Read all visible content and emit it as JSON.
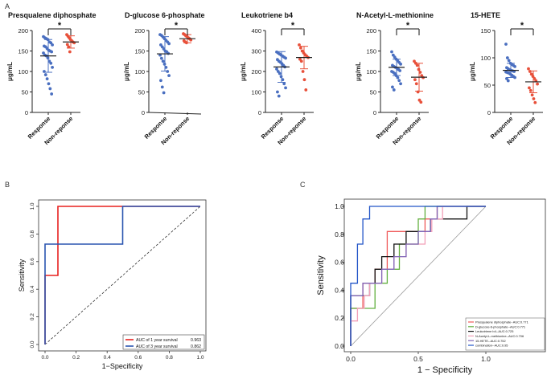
{
  "figure": {
    "panel_labels": [
      "A",
      "B",
      "C"
    ],
    "ylabel": "μg/mL",
    "group_labels": [
      "Response",
      "Non-reponse"
    ]
  },
  "colors": {
    "response": "#4a6fc0",
    "nonresponse": "#e8503a",
    "axis": "#222222",
    "roc1": "#e8201f",
    "roc3": "#2a55b0",
    "diag": "#333333",
    "c_pres": "#ef5a5a",
    "c_glu": "#63b040",
    "c_leuk": "#111111",
    "c_nacetyl": "#f2a0b8",
    "c_hete": "#8066b8",
    "c_combo": "#2255c8",
    "c_ref": "#999999"
  },
  "chart_data": [
    {
      "type": "scatter",
      "title": "Presqualene diphosphate",
      "ylabel": "μg/mL",
      "yticks": [
        0,
        50,
        100,
        150,
        200
      ],
      "ylim": [
        0,
        200
      ],
      "sig": "*",
      "groups": [
        {
          "name": "Response",
          "mean": 138,
          "sd": 40,
          "values": [
            185,
            182,
            180,
            178,
            172,
            170,
            165,
            162,
            160,
            156,
            152,
            150,
            148,
            145,
            140,
            138,
            133,
            125,
            120,
            110,
            100,
            92,
            82,
            70,
            58,
            45
          ]
        },
        {
          "name": "Non-reponse",
          "mean": 172,
          "sd": 15,
          "values": [
            190,
            186,
            182,
            178,
            175,
            172,
            170,
            166,
            160,
            148
          ]
        }
      ]
    },
    {
      "type": "scatter",
      "title": "D-glucose 6-phosphate",
      "ylabel": "μg/mL",
      "yticks": [
        0,
        50,
        100,
        150,
        200
      ],
      "ylim": [
        0,
        200
      ],
      "sig": "*",
      "groups": [
        {
          "name": "Response",
          "mean": 143,
          "sd": 42,
          "values": [
            190,
            188,
            184,
            180,
            176,
            172,
            168,
            165,
            160,
            155,
            150,
            148,
            144,
            140,
            132,
            125,
            118,
            110,
            100,
            90,
            78,
            62,
            48
          ]
        },
        {
          "name": "Non-reponse",
          "mean": 180,
          "sd": 10,
          "values": [
            192,
            190,
            187,
            185,
            182,
            180,
            177,
            175,
            172,
            170
          ]
        }
      ]
    },
    {
      "type": "scatter",
      "title": "Leukotriene b4",
      "ylabel": "μg/mL",
      "yticks": [
        0,
        100,
        200,
        300,
        400
      ],
      "ylim": [
        0,
        400
      ],
      "sig": "*",
      "groups": [
        {
          "name": "Response",
          "mean": 222,
          "sd": 75,
          "values": [
            295,
            290,
            285,
            280,
            275,
            270,
            265,
            258,
            250,
            245,
            238,
            230,
            222,
            212,
            200,
            190,
            175,
            160,
            140,
            120,
            100,
            80
          ]
        },
        {
          "name": "Non-reponse",
          "mean": 268,
          "sd": 55,
          "values": [
            330,
            315,
            300,
            290,
            282,
            275,
            268,
            260,
            250,
            200,
            160,
            110
          ]
        }
      ]
    },
    {
      "type": "scatter",
      "title": "N-Acetyl-L-methionine",
      "ylabel": "μg/mL",
      "yticks": [
        0,
        50,
        100,
        150,
        200
      ],
      "ylim": [
        0,
        200
      ],
      "sig": "*",
      "groups": [
        {
          "name": "Response",
          "mean": 110,
          "sd": 20,
          "values": [
            148,
            140,
            135,
            130,
            126,
            122,
            118,
            115,
            112,
            110,
            108,
            105,
            102,
            100,
            98,
            95,
            90,
            85,
            78,
            70,
            62,
            55
          ]
        },
        {
          "name": "Non-reponse",
          "mean": 86,
          "sd": 34,
          "values": [
            125,
            120,
            115,
            105,
            98,
            90,
            85,
            80,
            70,
            50,
            30,
            25
          ]
        }
      ]
    },
    {
      "type": "scatter",
      "title": "15-HETE",
      "ylabel": "μg/mL",
      "yticks": [
        0,
        50,
        100,
        150
      ],
      "ylim": [
        0,
        150
      ],
      "sig": "*",
      "groups": [
        {
          "name": "Response",
          "mean": 77,
          "sd": 13,
          "values": [
            125,
            100,
            95,
            90,
            88,
            86,
            84,
            82,
            80,
            78,
            77,
            76,
            75,
            74,
            73,
            72,
            70,
            68,
            66,
            64,
            62,
            58
          ]
        },
        {
          "name": "Non-reponse",
          "mean": 56,
          "sd": 20,
          "values": [
            80,
            75,
            70,
            66,
            62,
            58,
            52,
            45,
            40,
            32,
            25,
            18
          ]
        }
      ]
    },
    {
      "type": "line",
      "title": "",
      "xlabel": "1−Specificity",
      "ylabel": "Sensitivity",
      "xlim": [
        0,
        1
      ],
      "ylim": [
        0,
        1
      ],
      "xticks": [
        "0.0",
        "0.2",
        "0.4",
        "0.6",
        "0.8",
        "1.0"
      ],
      "yticks": [
        "0.0",
        "0.2",
        "0.4",
        "0.6",
        "0.8",
        "1.0"
      ],
      "series": [
        {
          "name": "AUC of 1 year survival",
          "auc": "0.963",
          "color_key": "roc1",
          "points": [
            [
              0,
              0
            ],
            [
              0,
              0.5
            ],
            [
              0.083,
              0.5
            ],
            [
              0.083,
              1.0
            ],
            [
              1.0,
              1.0
            ]
          ]
        },
        {
          "name": "AUC of 3 year survival",
          "auc": "0.862",
          "color_key": "roc3",
          "points": [
            [
              0,
              0
            ],
            [
              0,
              0.727
            ],
            [
              0.5,
              0.727
            ],
            [
              0.5,
              1.0
            ],
            [
              1.0,
              1.0
            ]
          ]
        }
      ],
      "legend": "bottom-right"
    },
    {
      "type": "line",
      "title": "",
      "xlabel": "1 − Specificity",
      "ylabel": "Sensitivity",
      "xlim": [
        0,
        1
      ],
      "ylim": [
        0,
        1
      ],
      "xticks": [
        "0.0",
        "0.5",
        "1.0"
      ],
      "yticks": [
        "0.0",
        "0.2",
        "0.4",
        "0.6",
        "0.8",
        "1.0"
      ],
      "series": [
        {
          "name": "Presqualene diphosphate--AUC:0.771",
          "color_key": "c_pres",
          "points": [
            [
              0,
              0
            ],
            [
              0,
              0.27
            ],
            [
              0.09,
              0.27
            ],
            [
              0.09,
              0.45
            ],
            [
              0.18,
              0.45
            ],
            [
              0.18,
              0.55
            ],
            [
              0.27,
              0.55
            ],
            [
              0.27,
              0.64
            ],
            [
              0.27,
              0.82
            ],
            [
              0.36,
              0.82
            ],
            [
              0.45,
              0.82
            ],
            [
              0.55,
              0.82
            ],
            [
              0.55,
              0.91
            ],
            [
              0.64,
              0.91
            ],
            [
              0.64,
              1.0
            ],
            [
              1.0,
              1.0
            ]
          ]
        },
        {
          "name": "D-glucose-6-phosphate--AUC:0.771",
          "color_key": "c_glu",
          "points": [
            [
              0,
              0
            ],
            [
              0,
              0.27
            ],
            [
              0.09,
              0.27
            ],
            [
              0.18,
              0.27
            ],
            [
              0.18,
              0.45
            ],
            [
              0.27,
              0.45
            ],
            [
              0.27,
              0.55
            ],
            [
              0.36,
              0.55
            ],
            [
              0.36,
              0.73
            ],
            [
              0.45,
              0.73
            ],
            [
              0.5,
              0.73
            ],
            [
              0.5,
              0.91
            ],
            [
              0.55,
              0.91
            ],
            [
              0.55,
              1.0
            ],
            [
              1.0,
              1.0
            ]
          ]
        },
        {
          "name": "Leukotriene b4--AUC:0.725",
          "color_key": "c_leuk",
          "points": [
            [
              0,
              0
            ],
            [
              0,
              0.36
            ],
            [
              0.14,
              0.36
            ],
            [
              0.14,
              0.45
            ],
            [
              0.18,
              0.45
            ],
            [
              0.18,
              0.55
            ],
            [
              0.23,
              0.55
            ],
            [
              0.23,
              0.64
            ],
            [
              0.32,
              0.64
            ],
            [
              0.32,
              0.73
            ],
            [
              0.41,
              0.73
            ],
            [
              0.41,
              0.82
            ],
            [
              0.59,
              0.82
            ],
            [
              0.59,
              0.91
            ],
            [
              0.86,
              0.91
            ],
            [
              0.86,
              1.0
            ],
            [
              1.0,
              1.0
            ]
          ]
        },
        {
          "name": "N-Acetyl-L-methionine--AUC:0.706",
          "color_key": "c_nacetyl",
          "points": [
            [
              0,
              0
            ],
            [
              0,
              0.18
            ],
            [
              0.05,
              0.18
            ],
            [
              0.05,
              0.27
            ],
            [
              0.1,
              0.27
            ],
            [
              0.1,
              0.36
            ],
            [
              0.14,
              0.36
            ],
            [
              0.14,
              0.45
            ],
            [
              0.23,
              0.45
            ],
            [
              0.23,
              0.55
            ],
            [
              0.32,
              0.55
            ],
            [
              0.32,
              0.64
            ],
            [
              0.41,
              0.64
            ],
            [
              0.41,
              0.73
            ],
            [
              0.55,
              0.73
            ],
            [
              0.55,
              0.82
            ],
            [
              0.6,
              0.82
            ],
            [
              0.6,
              0.91
            ],
            [
              0.68,
              0.91
            ],
            [
              0.68,
              1.0
            ],
            [
              1.0,
              1.0
            ]
          ]
        },
        {
          "name": "15-HETE--AUC:0.752",
          "color_key": "c_hete",
          "points": [
            [
              0,
              0
            ],
            [
              0,
              0.36
            ],
            [
              0.09,
              0.36
            ],
            [
              0.09,
              0.45
            ],
            [
              0.23,
              0.45
            ],
            [
              0.23,
              0.55
            ],
            [
              0.32,
              0.55
            ],
            [
              0.32,
              0.64
            ],
            [
              0.41,
              0.64
            ],
            [
              0.41,
              0.73
            ],
            [
              0.5,
              0.73
            ],
            [
              0.5,
              0.82
            ],
            [
              0.59,
              0.82
            ],
            [
              0.59,
              0.91
            ],
            [
              0.64,
              0.91
            ],
            [
              0.64,
              1.0
            ],
            [
              1.0,
              1.0
            ]
          ]
        },
        {
          "name": "combination--AUC:0.95",
          "color_key": "c_combo",
          "points": [
            [
              0,
              0
            ],
            [
              0,
              0.45
            ],
            [
              0.05,
              0.45
            ],
            [
              0.05,
              0.73
            ],
            [
              0.09,
              0.73
            ],
            [
              0.09,
              0.91
            ],
            [
              0.14,
              0.91
            ],
            [
              0.14,
              1.0
            ],
            [
              1.0,
              1.0
            ]
          ]
        }
      ],
      "reference_line": true,
      "legend": "bottom-right"
    }
  ]
}
